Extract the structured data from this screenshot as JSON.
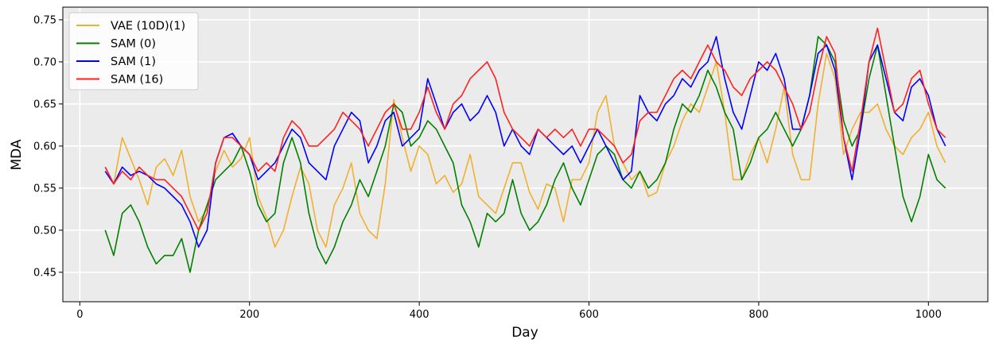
{
  "chart_data": {
    "type": "line",
    "title": "",
    "xlabel": "Day",
    "ylabel": "MDA",
    "xlim": [
      -20,
      1070
    ],
    "ylim": [
      0.415,
      0.765
    ],
    "xticks": [
      0,
      200,
      400,
      600,
      800,
      1000
    ],
    "yticks": [
      0.45,
      0.5,
      0.55,
      0.6,
      0.65,
      0.7,
      0.75
    ],
    "xtick_labels": [
      "0",
      "200",
      "400",
      "600",
      "800",
      "1000"
    ],
    "ytick_labels": [
      "0.45",
      "0.50",
      "0.55",
      "0.60",
      "0.65",
      "0.70",
      "0.75"
    ],
    "grid": true,
    "legend_position": "top-left",
    "series": [
      {
        "name": "VAE (10D)(1)",
        "color": "#f0b030",
        "x": [
          30,
          40,
          50,
          60,
          70,
          80,
          90,
          100,
          110,
          120,
          130,
          140,
          150,
          160,
          170,
          180,
          190,
          200,
          210,
          220,
          230,
          240,
          250,
          260,
          270,
          280,
          290,
          300,
          310,
          320,
          330,
          340,
          350,
          360,
          370,
          380,
          390,
          400,
          410,
          420,
          430,
          440,
          450,
          460,
          470,
          480,
          490,
          500,
          510,
          520,
          530,
          540,
          550,
          560,
          570,
          580,
          590,
          600,
          610,
          620,
          630,
          640,
          650,
          660,
          670,
          680,
          690,
          700,
          710,
          720,
          730,
          740,
          750,
          760,
          770,
          780,
          790,
          800,
          810,
          820,
          830,
          840,
          850,
          860,
          870,
          880,
          890,
          900,
          910,
          920,
          930,
          940,
          950,
          960,
          970,
          980,
          990,
          1000,
          1010,
          1020
        ],
        "y": [
          0.575,
          0.555,
          0.61,
          0.585,
          0.56,
          0.53,
          0.575,
          0.585,
          0.565,
          0.595,
          0.54,
          0.51,
          0.525,
          0.57,
          0.595,
          0.575,
          0.585,
          0.61,
          0.54,
          0.515,
          0.48,
          0.5,
          0.54,
          0.575,
          0.555,
          0.5,
          0.48,
          0.53,
          0.55,
          0.58,
          0.52,
          0.5,
          0.49,
          0.555,
          0.655,
          0.61,
          0.57,
          0.6,
          0.59,
          0.555,
          0.565,
          0.545,
          0.555,
          0.59,
          0.54,
          0.53,
          0.52,
          0.55,
          0.58,
          0.58,
          0.545,
          0.525,
          0.555,
          0.55,
          0.51,
          0.56,
          0.56,
          0.58,
          0.64,
          0.66,
          0.6,
          0.58,
          0.56,
          0.57,
          0.54,
          0.545,
          0.58,
          0.6,
          0.63,
          0.65,
          0.64,
          0.67,
          0.7,
          0.64,
          0.56,
          0.56,
          0.59,
          0.61,
          0.58,
          0.62,
          0.67,
          0.59,
          0.56,
          0.56,
          0.65,
          0.71,
          0.68,
          0.59,
          0.62,
          0.64,
          0.64,
          0.65,
          0.62,
          0.6,
          0.59,
          0.61,
          0.62,
          0.64,
          0.6,
          0.58
        ]
      },
      {
        "name": "SAM (0)",
        "color": "#008000",
        "x": [
          30,
          40,
          50,
          60,
          70,
          80,
          90,
          100,
          110,
          120,
          130,
          140,
          150,
          160,
          170,
          180,
          190,
          200,
          210,
          220,
          230,
          240,
          250,
          260,
          270,
          280,
          290,
          300,
          310,
          320,
          330,
          340,
          350,
          360,
          370,
          380,
          390,
          400,
          410,
          420,
          430,
          440,
          450,
          460,
          470,
          480,
          490,
          500,
          510,
          520,
          530,
          540,
          550,
          560,
          570,
          580,
          590,
          600,
          610,
          620,
          630,
          640,
          650,
          660,
          670,
          680,
          690,
          700,
          710,
          720,
          730,
          740,
          750,
          760,
          770,
          780,
          790,
          800,
          810,
          820,
          830,
          840,
          850,
          860,
          870,
          880,
          890,
          900,
          910,
          920,
          930,
          940,
          950,
          960,
          970,
          980,
          990,
          1000,
          1010,
          1020
        ],
        "y": [
          0.5,
          0.47,
          0.52,
          0.53,
          0.51,
          0.48,
          0.46,
          0.47,
          0.47,
          0.49,
          0.45,
          0.5,
          0.53,
          0.56,
          0.57,
          0.58,
          0.6,
          0.57,
          0.53,
          0.51,
          0.52,
          0.58,
          0.61,
          0.58,
          0.52,
          0.48,
          0.46,
          0.48,
          0.51,
          0.53,
          0.56,
          0.54,
          0.57,
          0.6,
          0.65,
          0.64,
          0.6,
          0.61,
          0.63,
          0.62,
          0.6,
          0.58,
          0.53,
          0.51,
          0.48,
          0.52,
          0.51,
          0.52,
          0.56,
          0.52,
          0.5,
          0.51,
          0.53,
          0.56,
          0.58,
          0.55,
          0.53,
          0.56,
          0.59,
          0.6,
          0.59,
          0.56,
          0.55,
          0.57,
          0.55,
          0.56,
          0.58,
          0.62,
          0.65,
          0.64,
          0.66,
          0.69,
          0.67,
          0.64,
          0.62,
          0.56,
          0.58,
          0.61,
          0.62,
          0.64,
          0.62,
          0.6,
          0.62,
          0.66,
          0.73,
          0.72,
          0.7,
          0.63,
          0.6,
          0.62,
          0.68,
          0.72,
          0.66,
          0.6,
          0.54,
          0.51,
          0.54,
          0.59,
          0.56,
          0.55
        ]
      },
      {
        "name": "SAM (1)",
        "color": "#0000ff",
        "x": [
          30,
          40,
          50,
          60,
          70,
          80,
          90,
          100,
          110,
          120,
          130,
          140,
          150,
          160,
          170,
          180,
          190,
          200,
          210,
          220,
          230,
          240,
          250,
          260,
          270,
          280,
          290,
          300,
          310,
          320,
          330,
          340,
          350,
          360,
          370,
          380,
          390,
          400,
          410,
          420,
          430,
          440,
          450,
          460,
          470,
          480,
          490,
          500,
          510,
          520,
          530,
          540,
          550,
          560,
          570,
          580,
          590,
          600,
          610,
          620,
          630,
          640,
          650,
          660,
          670,
          680,
          690,
          700,
          710,
          720,
          730,
          740,
          750,
          760,
          770,
          780,
          790,
          800,
          810,
          820,
          830,
          840,
          850,
          860,
          870,
          880,
          890,
          900,
          910,
          920,
          930,
          940,
          950,
          960,
          970,
          980,
          990,
          1000,
          1010,
          1020
        ],
        "y": [
          0.57,
          0.555,
          0.575,
          0.565,
          0.57,
          0.565,
          0.555,
          0.55,
          0.54,
          0.53,
          0.51,
          0.48,
          0.5,
          0.58,
          0.61,
          0.615,
          0.6,
          0.59,
          0.56,
          0.57,
          0.58,
          0.6,
          0.62,
          0.61,
          0.58,
          0.57,
          0.56,
          0.6,
          0.62,
          0.64,
          0.63,
          0.58,
          0.6,
          0.63,
          0.64,
          0.6,
          0.61,
          0.62,
          0.68,
          0.65,
          0.62,
          0.64,
          0.65,
          0.63,
          0.64,
          0.66,
          0.64,
          0.6,
          0.62,
          0.6,
          0.59,
          0.62,
          0.61,
          0.6,
          0.59,
          0.6,
          0.58,
          0.6,
          0.62,
          0.6,
          0.58,
          0.56,
          0.57,
          0.66,
          0.64,
          0.63,
          0.65,
          0.66,
          0.68,
          0.67,
          0.69,
          0.7,
          0.73,
          0.68,
          0.64,
          0.62,
          0.66,
          0.7,
          0.69,
          0.71,
          0.68,
          0.62,
          0.62,
          0.66,
          0.71,
          0.72,
          0.69,
          0.61,
          0.56,
          0.62,
          0.7,
          0.72,
          0.68,
          0.64,
          0.63,
          0.67,
          0.68,
          0.66,
          0.62,
          0.6
        ]
      },
      {
        "name": "SAM (16)",
        "color": "#ff2020",
        "x": [
          30,
          40,
          50,
          60,
          70,
          80,
          90,
          100,
          110,
          120,
          130,
          140,
          150,
          160,
          170,
          180,
          190,
          200,
          210,
          220,
          230,
          240,
          250,
          260,
          270,
          280,
          290,
          300,
          310,
          320,
          330,
          340,
          350,
          360,
          370,
          380,
          390,
          400,
          410,
          420,
          430,
          440,
          450,
          460,
          470,
          480,
          490,
          500,
          510,
          520,
          530,
          540,
          550,
          560,
          570,
          580,
          590,
          600,
          610,
          620,
          630,
          640,
          650,
          660,
          670,
          680,
          690,
          700,
          710,
          720,
          730,
          740,
          750,
          760,
          770,
          780,
          790,
          800,
          810,
          820,
          830,
          840,
          850,
          860,
          870,
          880,
          890,
          900,
          910,
          920,
          930,
          940,
          950,
          960,
          970,
          980,
          990,
          1000,
          1010,
          1020
        ],
        "y": [
          0.575,
          0.555,
          0.57,
          0.56,
          0.575,
          0.565,
          0.56,
          0.56,
          0.55,
          0.54,
          0.52,
          0.5,
          0.52,
          0.58,
          0.61,
          0.61,
          0.6,
          0.59,
          0.57,
          0.58,
          0.57,
          0.61,
          0.63,
          0.62,
          0.6,
          0.6,
          0.61,
          0.62,
          0.64,
          0.63,
          0.62,
          0.6,
          0.62,
          0.64,
          0.65,
          0.62,
          0.62,
          0.64,
          0.67,
          0.64,
          0.62,
          0.65,
          0.66,
          0.68,
          0.69,
          0.7,
          0.68,
          0.64,
          0.62,
          0.61,
          0.6,
          0.62,
          0.61,
          0.62,
          0.61,
          0.62,
          0.6,
          0.62,
          0.62,
          0.61,
          0.6,
          0.58,
          0.59,
          0.63,
          0.64,
          0.64,
          0.66,
          0.68,
          0.69,
          0.68,
          0.7,
          0.72,
          0.7,
          0.69,
          0.67,
          0.66,
          0.68,
          0.69,
          0.7,
          0.69,
          0.67,
          0.65,
          0.62,
          0.64,
          0.69,
          0.73,
          0.71,
          0.61,
          0.57,
          0.63,
          0.7,
          0.74,
          0.69,
          0.64,
          0.65,
          0.68,
          0.69,
          0.65,
          0.62,
          0.61
        ]
      }
    ]
  }
}
